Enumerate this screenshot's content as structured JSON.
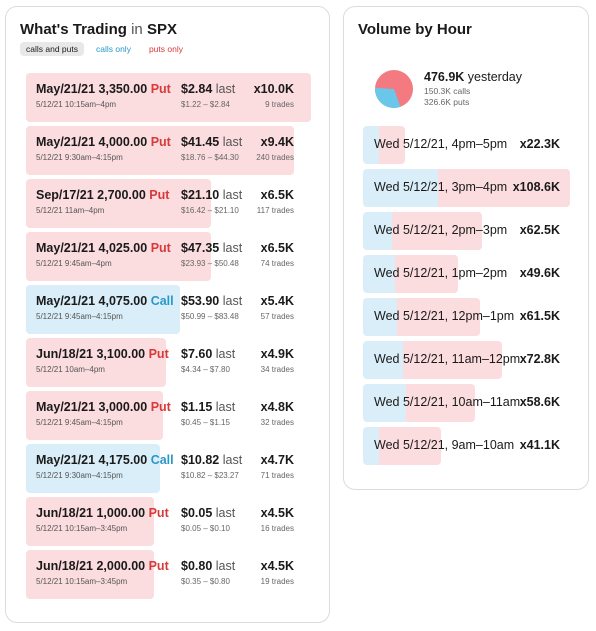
{
  "colors": {
    "put": "#d83a3a",
    "call": "#2a97c9",
    "put_bg": "#fbdcdf",
    "call_bg": "#d9eef8"
  },
  "trading": {
    "title_prefix": "What's Trading",
    "title_in": "in",
    "symbol": "SPX",
    "filters": [
      {
        "label": "calls and puts",
        "active": true
      },
      {
        "label": "calls only",
        "active": false
      },
      {
        "label": "puts only",
        "active": false
      }
    ],
    "trades": [
      {
        "contract": "May/21/21 3,350.00",
        "type": "Put",
        "kind": "put",
        "time": "5/12/21 10:15am–4pm",
        "price": "$2.84",
        "last": "last",
        "range": "$1.22 – $2.84",
        "mult": "x10.0K",
        "count": "9 trades",
        "fill": 1.0
      },
      {
        "contract": "May/21/21 4,000.00",
        "type": "Put",
        "kind": "put",
        "time": "5/12/21 9:30am–4:15pm",
        "price": "$41.45",
        "last": "last",
        "range": "$18.76 – $44.30",
        "mult": "x9.4K",
        "count": "240 trades",
        "fill": 0.94
      },
      {
        "contract": "Sep/17/21 2,700.00",
        "type": "Put",
        "kind": "put",
        "time": "5/12/21 11am–4pm",
        "price": "$21.10",
        "last": "last",
        "range": "$16.42 – $21.10",
        "mult": "x6.5K",
        "count": "117 trades",
        "fill": 0.65
      },
      {
        "contract": "May/21/21 4,025.00",
        "type": "Put",
        "kind": "put",
        "time": "5/12/21 9:45am–4pm",
        "price": "$47.35",
        "last": "last",
        "range": "$23.93 – $50.48",
        "mult": "x6.5K",
        "count": "74 trades",
        "fill": 0.65
      },
      {
        "contract": "May/21/21 4,075.00",
        "type": "Call",
        "kind": "call",
        "time": "5/12/21 9:45am–4:15pm",
        "price": "$53.90",
        "last": "last",
        "range": "$50.99 – $83.48",
        "mult": "x5.4K",
        "count": "57 trades",
        "fill": 0.54
      },
      {
        "contract": "Jun/18/21 3,100.00",
        "type": "Put",
        "kind": "put",
        "time": "5/12/21 10am–4pm",
        "price": "$7.60",
        "last": "last",
        "range": "$4.34 – $7.80",
        "mult": "x4.9K",
        "count": "34 trades",
        "fill": 0.49
      },
      {
        "contract": "May/21/21 3,000.00",
        "type": "Put",
        "kind": "put",
        "time": "5/12/21 9:45am–4:15pm",
        "price": "$1.15",
        "last": "last",
        "range": "$0.45 – $1.15",
        "mult": "x4.8K",
        "count": "32 trades",
        "fill": 0.48
      },
      {
        "contract": "May/21/21 4,175.00",
        "type": "Call",
        "kind": "call",
        "time": "5/12/21 9:30am–4:15pm",
        "price": "$10.82",
        "last": "last",
        "range": "$10.82 – $23.27",
        "mult": "x4.7K",
        "count": "71 trades",
        "fill": 0.47
      },
      {
        "contract": "Jun/18/21 1,000.00",
        "type": "Put",
        "kind": "put",
        "time": "5/12/21 10:15am–3:45pm",
        "price": "$0.05",
        "last": "last",
        "range": "$0.05 – $0.10",
        "mult": "x4.5K",
        "count": "16 trades",
        "fill": 0.45
      },
      {
        "contract": "Jun/18/21 2,000.00",
        "type": "Put",
        "kind": "put",
        "time": "5/12/21 10:15am–3:45pm",
        "price": "$0.80",
        "last": "last",
        "range": "$0.35 – $0.80",
        "mult": "x4.5K",
        "count": "19 trades",
        "fill": 0.45
      }
    ]
  },
  "volume": {
    "title": "Volume by Hour",
    "summary": {
      "total": "476.9K",
      "total_suffix": "yesterday",
      "calls": "150.3K calls",
      "puts": "326.6K puts",
      "call_share": 0.315
    },
    "hours": [
      {
        "label": "Wed 5/12/21, 4pm–5pm",
        "mult": "x22.3K",
        "fill": 0.205,
        "call_share": 0.38
      },
      {
        "label": "Wed 5/12/21, 3pm–4pm",
        "mult": "x108.6K",
        "fill": 1.0,
        "call_share": 0.36
      },
      {
        "label": "Wed 5/12/21, 2pm–3pm",
        "mult": "x62.5K",
        "fill": 0.576,
        "call_share": 0.24
      },
      {
        "label": "Wed 5/12/21, 1pm–2pm",
        "mult": "x49.6K",
        "fill": 0.457,
        "call_share": 0.34
      },
      {
        "label": "Wed 5/12/21, 12pm–1pm",
        "mult": "x61.5K",
        "fill": 0.566,
        "call_share": 0.29
      },
      {
        "label": "Wed 5/12/21, 11am–12pm",
        "mult": "x72.8K",
        "fill": 0.67,
        "call_share": 0.29
      },
      {
        "label": "Wed 5/12/21, 10am–11am",
        "mult": "x58.6K",
        "fill": 0.54,
        "call_share": 0.38
      },
      {
        "label": "Wed 5/12/21, 9am–10am",
        "mult": "x41.1K",
        "fill": 0.379,
        "call_share": 0.21
      }
    ]
  }
}
